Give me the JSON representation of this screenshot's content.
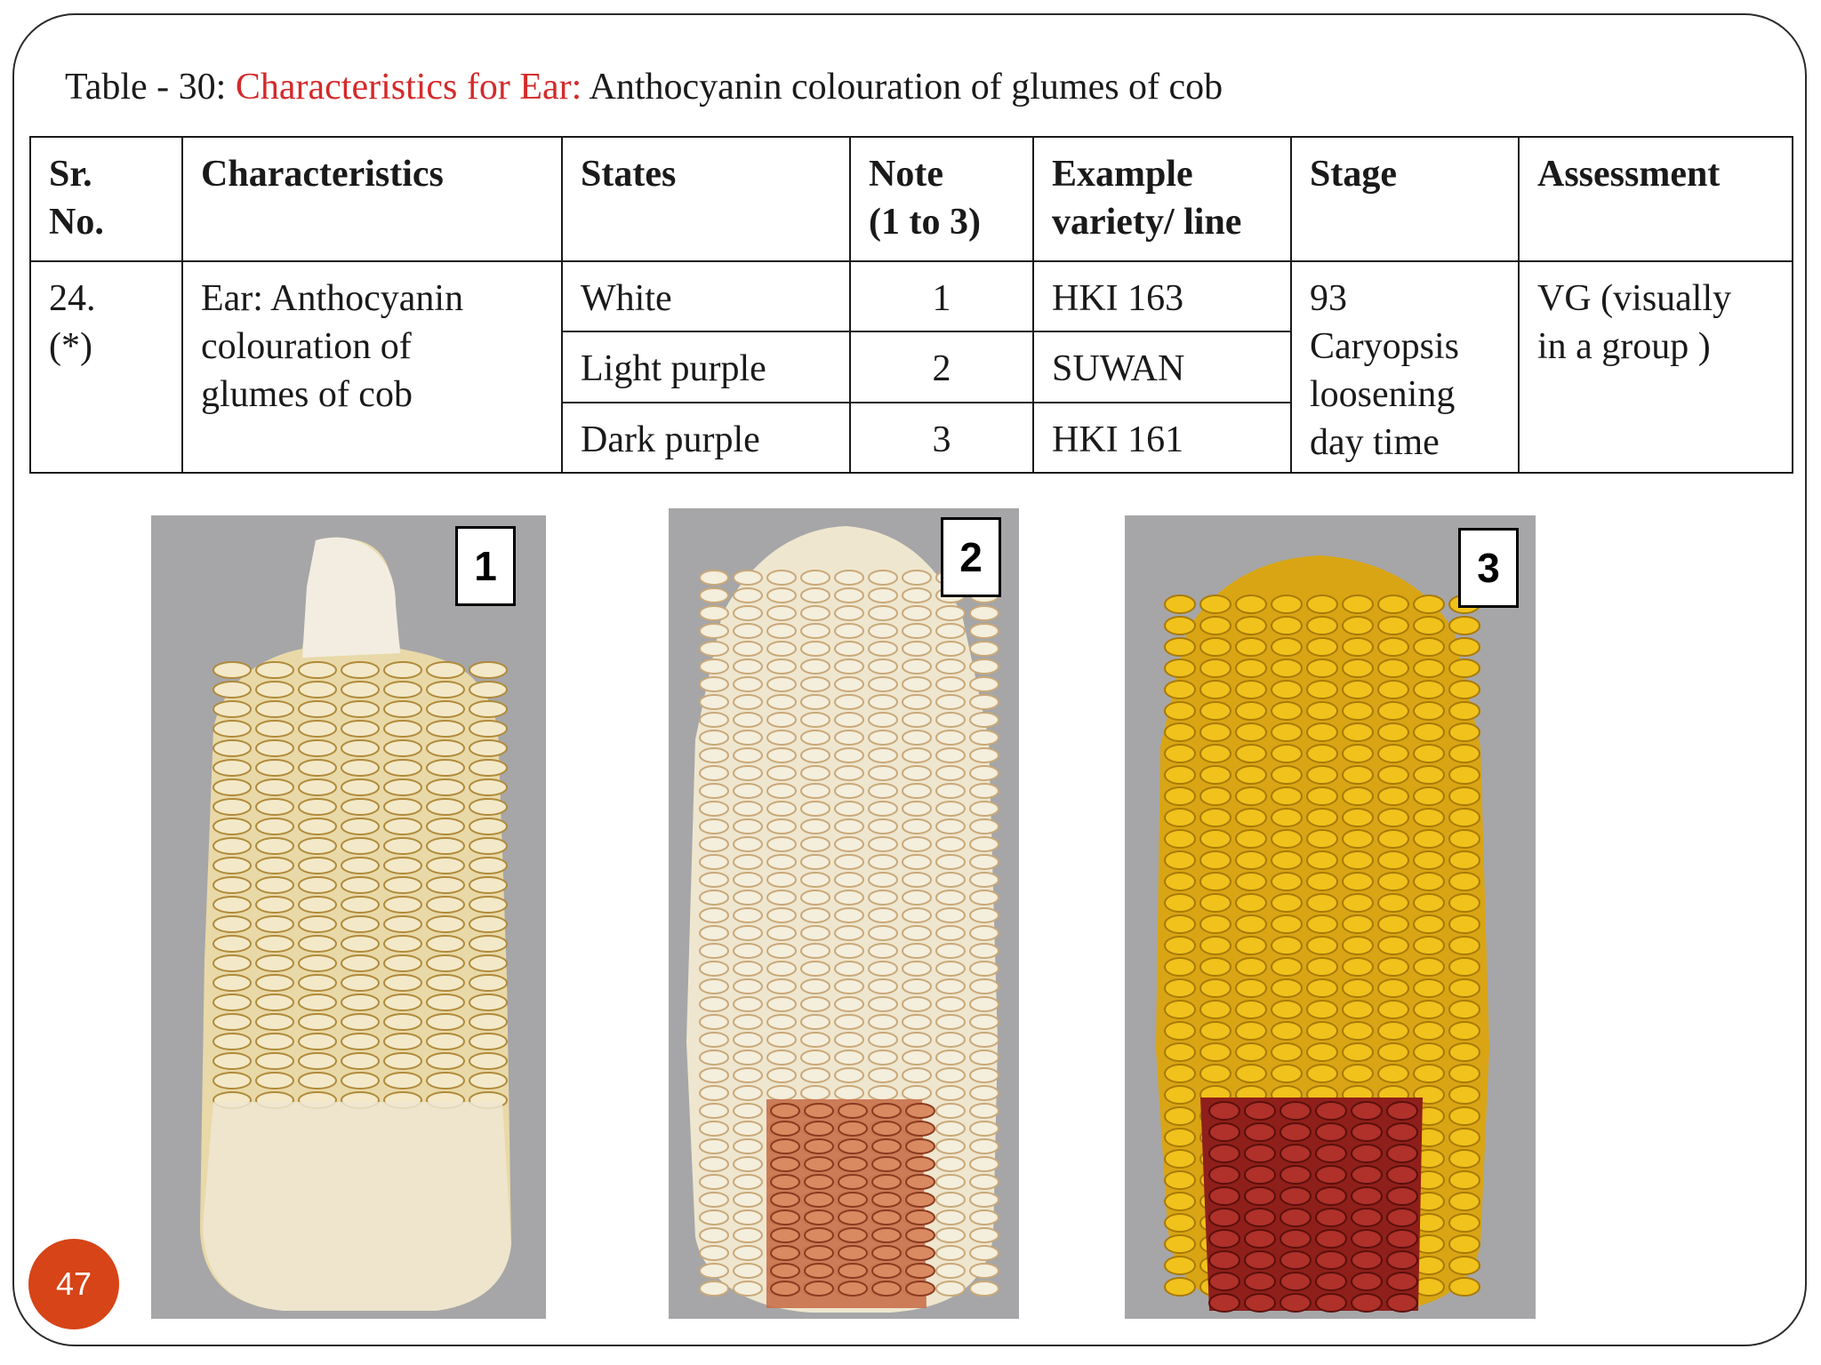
{
  "title": {
    "prefix": "Table - 30: ",
    "highlight": "Characteristics for Ear:",
    "suffix": " Anthocyanin colouration of glumes of cob"
  },
  "table": {
    "headers": {
      "sr_no": [
        "Sr.",
        "No."
      ],
      "characteristics": "Characteristics",
      "states": "States",
      "note": [
        "Note",
        "(1 to 3)"
      ],
      "example": [
        "Example",
        "variety/ line"
      ],
      "stage": "Stage",
      "assessment": "Assessment"
    },
    "sr_no": [
      "24.",
      "(*)"
    ],
    "characteristic": [
      "Ear: Anthocyanin",
      "colouration of",
      "glumes of cob"
    ],
    "rows": [
      {
        "state": "White",
        "note": "1",
        "example": "HKI 163"
      },
      {
        "state": "Light purple",
        "note": "2",
        "example": "SUWAN"
      },
      {
        "state": "Dark purple",
        "note": "3",
        "example": "HKI 161"
      }
    ],
    "stage": [
      "93",
      "Caryopsis",
      "loosening",
      "day time"
    ],
    "assessment": [
      "VG (visually",
      "in a group )"
    ]
  },
  "photos": [
    {
      "label": "1",
      "kernel_color": "#f3e9c9",
      "glume_color": "#e7c98a",
      "cob_color": "#f2ede0",
      "photo_bg": "#a6a6a8"
    },
    {
      "label": "2",
      "kernel_color": "#f4eedd",
      "glume_color": "#c9704a",
      "cob_color": "#f0e6d0",
      "photo_bg": "#a6a6a8"
    },
    {
      "label": "3",
      "kernel_color": "#f1c21b",
      "glume_color": "#8f1f1a",
      "cob_color": "#e8d8b0",
      "photo_bg": "#a6a6a8"
    }
  ],
  "page_number": "47",
  "colors": {
    "accent": "#d42a2a",
    "page_badge": "#d64417"
  }
}
